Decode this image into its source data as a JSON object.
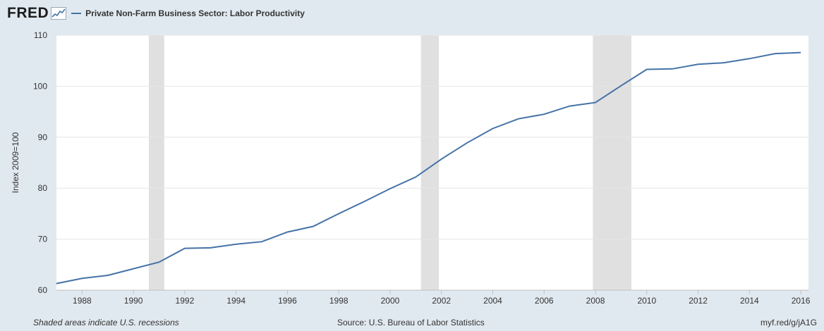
{
  "header": {
    "logo_text": "FRED",
    "series_label": "Private Non-Farm Business Sector: Labor Productivity"
  },
  "footer": {
    "note": "Shaded areas indicate U.S. recessions",
    "source": "Source: U.S. Bureau of Labor Statistics",
    "link": "myf.red/g/jA1G"
  },
  "colors": {
    "background": "#e1e9f0",
    "plot_background": "#ffffff",
    "line": "#4572a7",
    "recession": "#e0e0e0",
    "grid": "#e6e6e6"
  },
  "chart_data": {
    "type": "line",
    "title": "",
    "xlabel": "",
    "ylabel": "Index 2009=100",
    "xlim": [
      1987,
      2016.3
    ],
    "ylim": [
      60,
      110
    ],
    "yticks": [
      60,
      70,
      80,
      90,
      100,
      110
    ],
    "xticks": [
      1988,
      1990,
      1992,
      1994,
      1996,
      1998,
      2000,
      2002,
      2004,
      2006,
      2008,
      2010,
      2012,
      2014,
      2016
    ],
    "grid": "horizontal",
    "recessions": [
      [
        1990.6,
        1991.2
      ],
      [
        2001.2,
        2001.9
      ],
      [
        2007.9,
        2009.4
      ]
    ],
    "series": [
      {
        "name": "Private Non-Farm Business Sector: Labor Productivity",
        "x": [
          1987,
          1988,
          1989,
          1990,
          1991,
          1992,
          1993,
          1994,
          1995,
          1996,
          1997,
          1998,
          1999,
          2000,
          2001,
          2002,
          2003,
          2004,
          2005,
          2006,
          2007,
          2008,
          2009,
          2010,
          2011,
          2012,
          2013,
          2014,
          2015,
          2016
        ],
        "values": [
          61.3,
          62.3,
          62.9,
          64.2,
          65.5,
          68.2,
          68.3,
          69.0,
          69.5,
          71.4,
          72.5,
          75.0,
          77.4,
          79.9,
          82.2,
          85.7,
          88.9,
          91.7,
          93.6,
          94.5,
          96.1,
          96.8,
          100.1,
          103.3,
          103.4,
          104.3,
          104.6,
          105.4,
          106.4,
          106.6
        ]
      }
    ]
  }
}
